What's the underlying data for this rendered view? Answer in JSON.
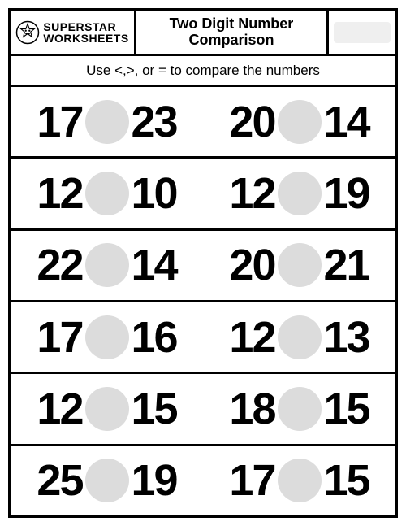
{
  "brand": {
    "line1": "SUPERSTAR",
    "line2": "WORKSHEETS"
  },
  "title": {
    "line1": "Two Digit Number",
    "line2": "Comparison"
  },
  "instructions": "Use <,>, or = to compare the numbers",
  "circle_color": "#dcdcdc",
  "border_color": "#000000",
  "background_color": "#ffffff",
  "name_box_color": "#efefef",
  "number_font_size": 54,
  "rows": [
    {
      "left": {
        "a": "17",
        "b": "23"
      },
      "right": {
        "a": "20",
        "b": "14"
      }
    },
    {
      "left": {
        "a": "12",
        "b": "10"
      },
      "right": {
        "a": "12",
        "b": "19"
      }
    },
    {
      "left": {
        "a": "22",
        "b": "14"
      },
      "right": {
        "a": "20",
        "b": "21"
      }
    },
    {
      "left": {
        "a": "17",
        "b": "16"
      },
      "right": {
        "a": "12",
        "b": "13"
      }
    },
    {
      "left": {
        "a": "12",
        "b": "15"
      },
      "right": {
        "a": "18",
        "b": "15"
      }
    },
    {
      "left": {
        "a": "25",
        "b": "19"
      },
      "right": {
        "a": "17",
        "b": "15"
      }
    }
  ]
}
